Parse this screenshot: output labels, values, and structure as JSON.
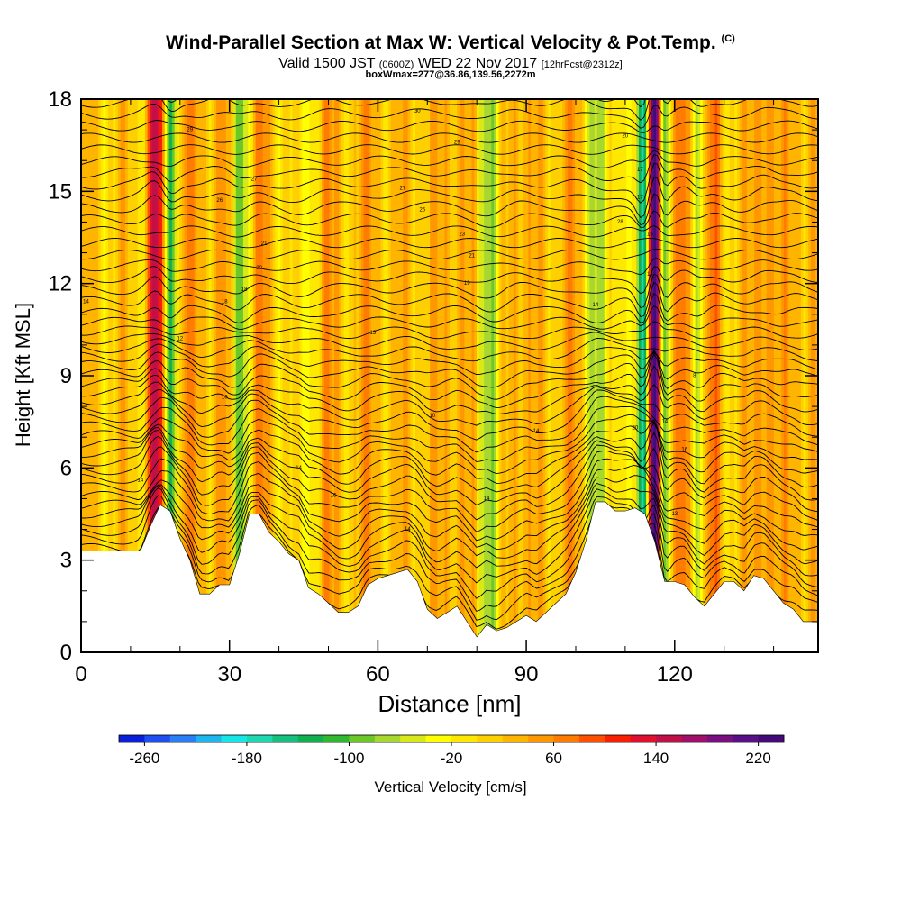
{
  "header": {
    "title": "Wind-Parallel Section at Max W: Vertical Velocity & Pot.Temp.",
    "title_mark": "(C)",
    "valid_prefix": "Valid 1500 JST",
    "valid_utc": "(0600Z)",
    "valid_date": "WED 22 Nov 2017",
    "forecast": "[12hrFcst@2312z]",
    "box_info": "boxWmax=277@36.86,139.56,2272m"
  },
  "chart_data": {
    "type": "heatmap",
    "title": "Wind-Parallel Section at Max W: Vertical Velocity & Pot.Temp.",
    "xlabel": "Distance [nm]",
    "ylabel": "Height [Kft MSL]",
    "xlim": [
      0,
      149
    ],
    "ylim": [
      0,
      18
    ],
    "x_ticks": [
      0,
      30,
      60,
      90,
      120
    ],
    "y_ticks": [
      0,
      3,
      6,
      9,
      12,
      15,
      18
    ],
    "colorbar": {
      "label": "Vertical Velocity [cm/s]",
      "ticks": [
        -260,
        -180,
        -100,
        -20,
        60,
        140,
        220
      ],
      "min": -280,
      "max": 240,
      "step": 20,
      "colors": [
        "#0a1fd8",
        "#1f4ff0",
        "#2a7ff5",
        "#1fb6f0",
        "#18e6e6",
        "#20d8b0",
        "#18c080",
        "#10b050",
        "#30b830",
        "#6cc828",
        "#a8d830",
        "#d8e818",
        "#ffff00",
        "#ffe800",
        "#ffd000",
        "#ffb400",
        "#ff9800",
        "#ff7c00",
        "#ff5000",
        "#f82000",
        "#e01030",
        "#c0104a",
        "#a0106a",
        "#7a1080",
        "#581088",
        "#440a7a"
      ]
    },
    "updraft_bands": [
      {
        "x": 15,
        "w": 130,
        "width": 1.8
      },
      {
        "x": 21,
        "w": 40,
        "width": 2.5
      },
      {
        "x": 28,
        "w": 40,
        "width": 2.5
      },
      {
        "x": 36,
        "w": 35,
        "width": 2.5
      },
      {
        "x": 49,
        "w": 30,
        "width": 3.0
      },
      {
        "x": 58,
        "w": 30,
        "width": 3.0
      },
      {
        "x": 67,
        "w": 20,
        "width": 3.0
      },
      {
        "x": 75,
        "w": 35,
        "width": 3.0
      },
      {
        "x": 89,
        "w": 35,
        "width": 3.0
      },
      {
        "x": 98,
        "w": 30,
        "width": 3.0
      },
      {
        "x": 116,
        "w": 277,
        "width": 1.1
      },
      {
        "x": 122,
        "w": 60,
        "width": 1.5
      },
      {
        "x": 128,
        "w": 50,
        "width": 2.0
      },
      {
        "x": 138,
        "w": 60,
        "width": 2.0
      },
      {
        "x": 144,
        "w": 40,
        "width": 2.0
      }
    ],
    "downdraft_bands": [
      {
        "x": 18,
        "w": -120,
        "width": 1.5
      },
      {
        "x": 32,
        "w": -90,
        "width": 2.0
      },
      {
        "x": 45,
        "w": -40,
        "width": 2.5
      },
      {
        "x": 83,
        "w": -70,
        "width": 2.5
      },
      {
        "x": 105,
        "w": -80,
        "width": 2.5
      },
      {
        "x": 113.5,
        "w": -200,
        "width": 1.2
      },
      {
        "x": 118,
        "w": -100,
        "width": 0.9
      },
      {
        "x": 125,
        "w": -50,
        "width": 1.5
      }
    ],
    "terrain_kft": [
      [
        0,
        3.3
      ],
      [
        6,
        3.3
      ],
      [
        12,
        3.3
      ],
      [
        14,
        4.1
      ],
      [
        16,
        4.8
      ],
      [
        18,
        4.6
      ],
      [
        20,
        3.7
      ],
      [
        22,
        3.0
      ],
      [
        24,
        1.9
      ],
      [
        26,
        1.9
      ],
      [
        28,
        2.2
      ],
      [
        30,
        2.2
      ],
      [
        32,
        3.2
      ],
      [
        34,
        4.5
      ],
      [
        36,
        4.5
      ],
      [
        38,
        3.9
      ],
      [
        40,
        3.6
      ],
      [
        42,
        3.2
      ],
      [
        44,
        3.0
      ],
      [
        46,
        2.1
      ],
      [
        48,
        1.9
      ],
      [
        50,
        1.6
      ],
      [
        52,
        1.3
      ],
      [
        54,
        1.3
      ],
      [
        56,
        1.5
      ],
      [
        58,
        2.2
      ],
      [
        60,
        2.4
      ],
      [
        62,
        2.5
      ],
      [
        64,
        2.6
      ],
      [
        66,
        2.7
      ],
      [
        68,
        2.3
      ],
      [
        70,
        1.4
      ],
      [
        72,
        1.1
      ],
      [
        74,
        1.3
      ],
      [
        76,
        1.5
      ],
      [
        78,
        1.0
      ],
      [
        80,
        0.5
      ],
      [
        82,
        0.9
      ],
      [
        84,
        0.7
      ],
      [
        86,
        0.8
      ],
      [
        88,
        1.0
      ],
      [
        90,
        1.2
      ],
      [
        92,
        1.0
      ],
      [
        94,
        1.3
      ],
      [
        96,
        1.6
      ],
      [
        98,
        1.9
      ],
      [
        100,
        2.6
      ],
      [
        102,
        3.6
      ],
      [
        104,
        4.9
      ],
      [
        106,
        4.9
      ],
      [
        108,
        4.6
      ],
      [
        110,
        4.6
      ],
      [
        112,
        4.7
      ],
      [
        114,
        4.5
      ],
      [
        116,
        3.6
      ],
      [
        118,
        2.3
      ],
      [
        120,
        2.3
      ],
      [
        122,
        2.2
      ],
      [
        124,
        1.8
      ],
      [
        126,
        1.5
      ],
      [
        128,
        1.9
      ],
      [
        130,
        2.3
      ],
      [
        132,
        2.3
      ],
      [
        134,
        2.0
      ],
      [
        136,
        2.5
      ],
      [
        138,
        2.4
      ],
      [
        140,
        2.0
      ],
      [
        142,
        1.6
      ],
      [
        144,
        1.4
      ],
      [
        146,
        1.0
      ],
      [
        149,
        1.0
      ]
    ],
    "contour_labels": [
      {
        "x": 68,
        "y": 17.6,
        "text": "30"
      },
      {
        "x": 22,
        "y": 17.0,
        "text": "29"
      },
      {
        "x": 76,
        "y": 16.6,
        "text": "29"
      },
      {
        "x": 110,
        "y": 16.8,
        "text": "20"
      },
      {
        "x": 113,
        "y": 15.7,
        "text": "17"
      },
      {
        "x": 35,
        "y": 15.4,
        "text": "27"
      },
      {
        "x": 65,
        "y": 15.1,
        "text": "27"
      },
      {
        "x": 28,
        "y": 14.7,
        "text": "26"
      },
      {
        "x": 69,
        "y": 14.4,
        "text": "26"
      },
      {
        "x": 113,
        "y": 14.8,
        "text": "17"
      },
      {
        "x": 109,
        "y": 14.0,
        "text": "28"
      },
      {
        "x": 77,
        "y": 13.6,
        "text": "23"
      },
      {
        "x": 115,
        "y": 13.6,
        "text": "15"
      },
      {
        "x": 37,
        "y": 13.3,
        "text": "21"
      },
      {
        "x": 79,
        "y": 12.9,
        "text": "21"
      },
      {
        "x": 36,
        "y": 12.5,
        "text": "20"
      },
      {
        "x": 115,
        "y": 12.3,
        "text": "14"
      },
      {
        "x": 78,
        "y": 12.0,
        "text": "19"
      },
      {
        "x": 33,
        "y": 11.8,
        "text": "18"
      },
      {
        "x": 1,
        "y": 11.4,
        "text": "14"
      },
      {
        "x": 29,
        "y": 11.4,
        "text": "18"
      },
      {
        "x": 104,
        "y": 11.3,
        "text": "14"
      },
      {
        "x": 59,
        "y": 10.4,
        "text": "13"
      },
      {
        "x": 20,
        "y": 10.2,
        "text": "12"
      },
      {
        "x": 124,
        "y": 9.0,
        "text": "8"
      },
      {
        "x": 29,
        "y": 8.3,
        "text": "10"
      },
      {
        "x": 71,
        "y": 7.7,
        "text": "10"
      },
      {
        "x": 112,
        "y": 7.3,
        "text": "20"
      },
      {
        "x": 118,
        "y": 7.5,
        "text": "14"
      },
      {
        "x": 92,
        "y": 7.2,
        "text": "14"
      },
      {
        "x": 122,
        "y": 6.6,
        "text": "16"
      },
      {
        "x": 44,
        "y": 6.0,
        "text": "14"
      },
      {
        "x": 12,
        "y": 5.6,
        "text": "14"
      },
      {
        "x": 51,
        "y": 5.1,
        "text": "16"
      },
      {
        "x": 82,
        "y": 5.0,
        "text": "14"
      },
      {
        "x": 120,
        "y": 4.5,
        "text": "13"
      },
      {
        "x": 66,
        "y": 4.0,
        "text": "14"
      }
    ]
  }
}
